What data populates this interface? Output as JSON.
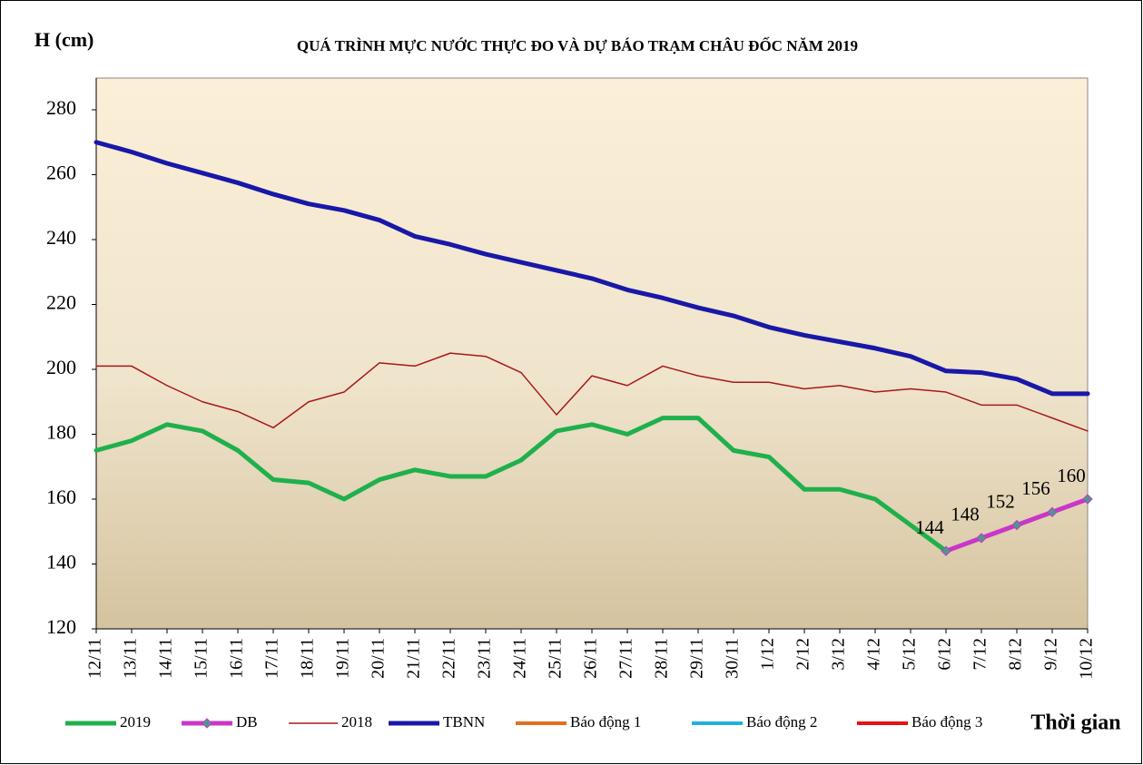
{
  "chart_data": {
    "type": "line",
    "title": "QUÁ TRÌNH MỰC NƯỚC THỰC ĐO VÀ DỰ BÁO TRẠM CHÂU ĐỐC NĂM  2019",
    "y_label": "H (cm)",
    "x_label": "Thời gian",
    "categories": [
      "12/11",
      "13/11",
      "14/11",
      "15/11",
      "16/11",
      "17/11",
      "18/11",
      "19/11",
      "20/11",
      "21/11",
      "22/11",
      "23/11",
      "24/11",
      "25/11",
      "26/11",
      "27/11",
      "28/11",
      "29/11",
      "30/11",
      "1/12",
      "2/12",
      "3/12",
      "4/12",
      "5/12",
      "6/12",
      "7/12",
      "8/12",
      "9/12",
      "10/12"
    ],
    "ylim": [
      120,
      280
    ],
    "yticks": [
      120,
      140,
      160,
      180,
      200,
      220,
      240,
      260,
      280
    ],
    "grid": false,
    "series": [
      {
        "name": "2019",
        "color": "#1fb04c",
        "values": [
          175,
          178,
          183,
          181,
          175,
          166,
          165,
          160,
          166,
          169,
          167,
          167,
          172,
          181,
          183,
          180,
          185,
          185,
          175,
          173,
          163,
          163,
          160,
          152,
          144,
          null,
          null,
          null,
          null
        ]
      },
      {
        "name": "DB",
        "color": "#c837c8",
        "marker": "diamond",
        "data_labels": true,
        "values": [
          null,
          null,
          null,
          null,
          null,
          null,
          null,
          null,
          null,
          null,
          null,
          null,
          null,
          null,
          null,
          null,
          null,
          null,
          null,
          null,
          null,
          null,
          null,
          null,
          144,
          148,
          152,
          156,
          160
        ]
      },
      {
        "name": "2018",
        "color": "#a81818",
        "values": [
          201,
          201,
          195,
          190,
          187,
          182,
          190,
          193,
          202,
          201,
          205,
          204,
          199,
          186,
          198,
          195,
          201,
          198,
          196,
          196,
          194,
          195,
          193,
          194,
          193,
          189,
          189,
          185,
          181
        ]
      },
      {
        "name": "TBNN",
        "color": "#1818a8",
        "values": [
          270,
          267,
          263.5,
          260.5,
          257.5,
          254,
          251,
          249,
          246,
          241,
          238.5,
          235.5,
          233,
          230.5,
          228,
          224.5,
          222,
          219,
          216.5,
          213,
          210.5,
          208.5,
          206.5,
          204,
          199.5,
          199,
          197,
          192.5,
          192.5
        ]
      },
      {
        "name": "Báo động 1",
        "color": "#e07020",
        "values": [
          null,
          null,
          null,
          null,
          null,
          null,
          null,
          null,
          null,
          null,
          null,
          null,
          null,
          null,
          null,
          null,
          null,
          null,
          null,
          null,
          null,
          null,
          null,
          null,
          null,
          null,
          null,
          null,
          null
        ]
      },
      {
        "name": "Báo động 2",
        "color": "#20b0e0",
        "values": [
          null,
          null,
          null,
          null,
          null,
          null,
          null,
          null,
          null,
          null,
          null,
          null,
          null,
          null,
          null,
          null,
          null,
          null,
          null,
          null,
          null,
          null,
          null,
          null,
          null,
          null,
          null,
          null,
          null
        ]
      },
      {
        "name": "Báo động 3",
        "color": "#e81010",
        "values": [
          null,
          null,
          null,
          null,
          null,
          null,
          null,
          null,
          null,
          null,
          null,
          null,
          null,
          null,
          null,
          null,
          null,
          null,
          null,
          null,
          null,
          null,
          null,
          null,
          null,
          null,
          null,
          null,
          null
        ]
      }
    ]
  }
}
